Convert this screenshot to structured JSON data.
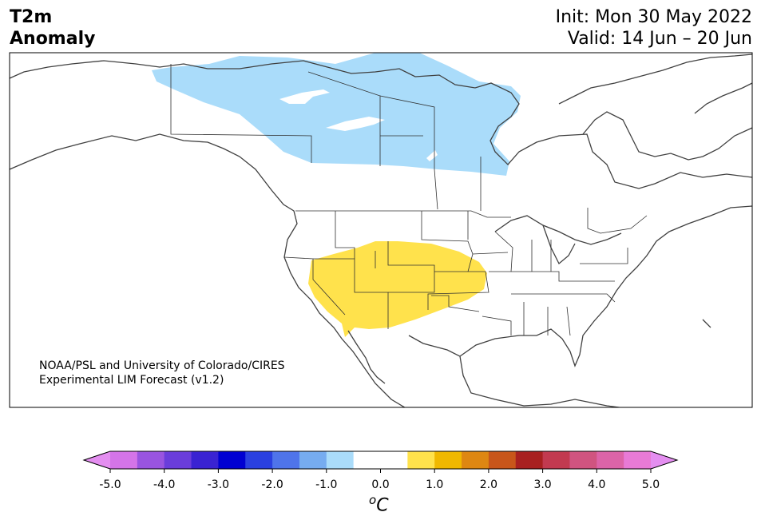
{
  "title": {
    "variable": "T2m",
    "subtitle": "Anomaly",
    "init": "Init: Mon 30 May 2022",
    "valid": "Valid: 14 Jun – 20 Jun"
  },
  "credit": {
    "line1": "NOAA/PSL and University of Colorado/CIRES",
    "line2": "Experimental LIM Forecast (v1.2)"
  },
  "map": {
    "region": "North America",
    "anomalies": [
      {
        "label": "cold",
        "color": "#aadcfa",
        "level": -1.0
      },
      {
        "label": "warm",
        "color": "#ffe24c",
        "level": 1.0
      }
    ]
  },
  "colorbar": {
    "unit_prefix": "o",
    "unit": "C",
    "min": -5.0,
    "max": 5.0,
    "step": 0.5,
    "ticks": [
      "-5.0",
      "-4.0",
      "-3.0",
      "-2.0",
      "-1.0",
      "0.0",
      "1.0",
      "2.0",
      "3.0",
      "4.0",
      "5.0"
    ],
    "under_color": "#e48ef0",
    "over_color": "#e48ef0",
    "colors": [
      "#d474e8",
      "#9954e0",
      "#6a3ddb",
      "#3a23d2",
      "#0000d2",
      "#2a40e0",
      "#4f74ea",
      "#76acf0",
      "#aadcfa",
      "#ffffff",
      "#ffffff",
      "#ffe24c",
      "#f0b800",
      "#de8712",
      "#c8561a",
      "#a82020",
      "#c23a50",
      "#d05480",
      "#dc64a8",
      "#e87ad6"
    ]
  }
}
